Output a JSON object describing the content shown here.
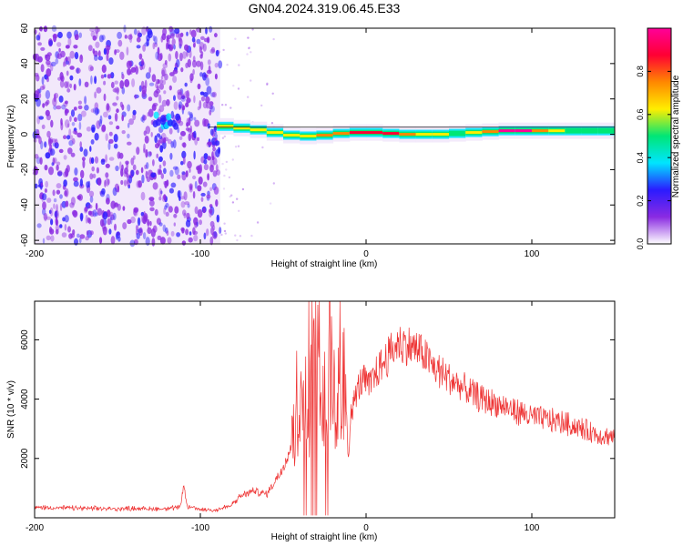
{
  "title": "GN04.2024.319.06.45.E33",
  "colors": {
    "snr_line": "#ee3333",
    "ridge": "#1a1a1a",
    "colormap": [
      "#f2e8fb",
      "#8a2be2",
      "#2b1bff",
      "#00e5ff",
      "#00e676",
      "#ffee00",
      "#ff8800",
      "#ff0033",
      "#ff0099"
    ]
  },
  "chart_data": [
    {
      "type": "heatmap",
      "xlabel": "Height of straight line (km)",
      "ylabel": "Frequency (Hz)",
      "xlim": [
        -200,
        150
      ],
      "ylim": [
        -62,
        60
      ],
      "xticks": [
        -200,
        -100,
        0,
        100
      ],
      "yticks": [
        -60,
        -40,
        -20,
        0,
        20,
        40,
        60
      ],
      "colorbar": {
        "label": "Normalized spectral amplitude",
        "range": [
          0,
          1
        ],
        "ticks": [
          "0.0",
          "0.2",
          "0.4",
          "0.6",
          "0.8"
        ],
        "tick_values": [
          0,
          0.2,
          0.4,
          0.6,
          0.8
        ]
      },
      "regions": [
        {
          "name": "broadband noise",
          "x_range": [
            -200,
            -88
          ],
          "freq_range": [
            -62,
            60
          ],
          "amplitude": 0.25
        },
        {
          "name": "burst onset",
          "x_range": [
            -128,
            -112
          ],
          "freq_center": 8,
          "amplitude": 0.45
        }
      ],
      "ridge": [
        {
          "x": -90,
          "freq": 5,
          "amplitude": 0.55
        },
        {
          "x": -80,
          "freq": 4,
          "amplitude": 0.6
        },
        {
          "x": -70,
          "freq": 3,
          "amplitude": 0.6
        },
        {
          "x": -60,
          "freq": 2,
          "amplitude": 0.55
        },
        {
          "x": -50,
          "freq": 0,
          "amplitude": 0.6
        },
        {
          "x": -40,
          "freq": -1,
          "amplitude": 0.65
        },
        {
          "x": -30,
          "freq": -1,
          "amplitude": 0.7
        },
        {
          "x": -20,
          "freq": 0,
          "amplitude": 0.75
        },
        {
          "x": -10,
          "freq": 1,
          "amplitude": 0.8
        },
        {
          "x": 0,
          "freq": 1,
          "amplitude": 0.85
        },
        {
          "x": 10,
          "freq": 1,
          "amplitude": 0.85
        },
        {
          "x": 20,
          "freq": 0,
          "amplitude": 0.8
        },
        {
          "x": 30,
          "freq": 0,
          "amplitude": 0.75
        },
        {
          "x": 40,
          "freq": 0,
          "amplitude": 0.6
        },
        {
          "x": 50,
          "freq": 0,
          "amplitude": 0.55
        },
        {
          "x": 60,
          "freq": 1,
          "amplitude": 0.55
        },
        {
          "x": 70,
          "freq": 1,
          "amplitude": 0.6
        },
        {
          "x": 80,
          "freq": 2,
          "amplitude": 0.95
        },
        {
          "x": 90,
          "freq": 2,
          "amplitude": 1.0
        },
        {
          "x": 100,
          "freq": 2,
          "amplitude": 0.9
        },
        {
          "x": 110,
          "freq": 2,
          "amplitude": 0.6
        },
        {
          "x": 120,
          "freq": 2,
          "amplitude": 0.55
        },
        {
          "x": 130,
          "freq": 2,
          "amplitude": 0.55
        },
        {
          "x": 140,
          "freq": 2,
          "amplitude": 0.5
        },
        {
          "x": 150,
          "freq": 2,
          "amplitude": 0.5
        }
      ]
    },
    {
      "type": "line",
      "xlabel": "Height of straight line (km)",
      "ylabel": "SNR (10 * v/v)",
      "xlim": [
        -200,
        150
      ],
      "ylim": [
        0,
        7300
      ],
      "xticks": [
        -200,
        -100,
        0,
        100
      ],
      "yticks": [
        2000,
        4000,
        6000
      ],
      "x": [
        -200,
        -190,
        -180,
        -170,
        -160,
        -150,
        -140,
        -130,
        -120,
        -112,
        -110,
        -108,
        -100,
        -90,
        -82,
        -75,
        -68,
        -60,
        -52,
        -46,
        -42,
        -38,
        -34,
        -30,
        -26,
        -22,
        -18,
        -14,
        -10,
        -6,
        -2,
        2,
        6,
        10,
        15,
        20,
        25,
        30,
        35,
        40,
        45,
        50,
        55,
        60,
        70,
        80,
        90,
        100,
        110,
        120,
        130,
        140,
        150
      ],
      "series": [
        {
          "values": [
            350,
            340,
            330,
            320,
            310,
            300,
            320,
            300,
            310,
            350,
            1100,
            380,
            280,
            270,
            400,
            750,
            900,
            800,
            1500,
            2300,
            3000,
            4200,
            3700,
            6200,
            3600,
            5600,
            3800,
            4600,
            3200,
            4200,
            4700,
            4400,
            4900,
            5200,
            5600,
            5900,
            5800,
            5700,
            5500,
            5100,
            4900,
            4700,
            4500,
            4300,
            4000,
            3800,
            3600,
            3400,
            3300,
            3200,
            3000,
            2800,
            2700
          ]
        }
      ]
    }
  ]
}
